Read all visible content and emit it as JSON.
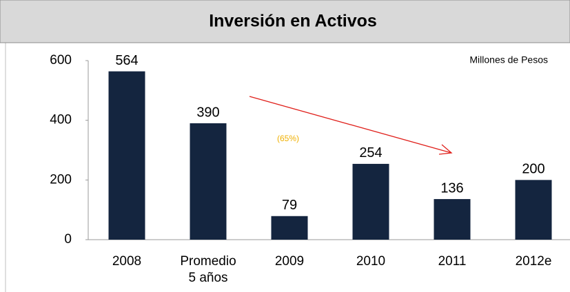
{
  "chart_data": {
    "type": "bar",
    "title": "Inversión en Activos",
    "categories": [
      "2008",
      "Promedio 5 años",
      "2009",
      "2010",
      "2011",
      "2012e"
    ],
    "values": [
      564,
      390,
      79,
      254,
      136,
      200
    ],
    "color": "#14253f",
    "ylim": [
      0,
      600
    ],
    "yticks": [
      0,
      200,
      400,
      600
    ],
    "grid": false,
    "annotations": [
      "Millones de Pesos",
      "(65%)"
    ]
  }
}
